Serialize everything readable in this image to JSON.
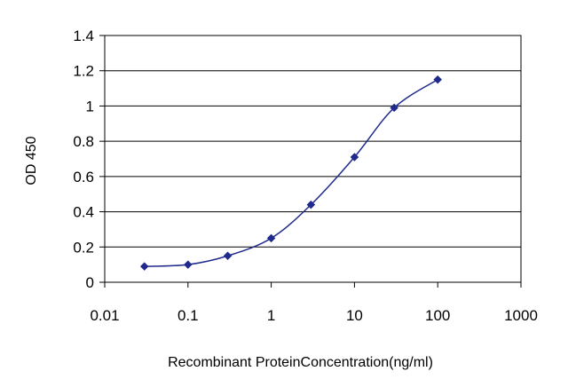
{
  "chart_data": {
    "type": "line",
    "title": "",
    "xlabel": "Recombinant ProteinConcentration(ng/ml)",
    "ylabel": "OD 450",
    "x_scale": "log",
    "xlim": [
      0.01,
      1000
    ],
    "ylim": [
      0,
      1.4
    ],
    "x_ticks": [
      0.01,
      0.1,
      1,
      10,
      100,
      1000
    ],
    "x_tick_labels": [
      "0.01",
      "0.1",
      "1",
      "10",
      "100",
      "1000"
    ],
    "y_ticks": [
      0,
      0.2,
      0.4,
      0.6,
      0.8,
      1,
      1.2,
      1.4
    ],
    "y_tick_labels": [
      "0",
      "0.2",
      "0.4",
      "0.6",
      "0.8",
      "1",
      "1.2",
      "1.4"
    ],
    "grid": "horizontal",
    "series": [
      {
        "x": [
          0.03,
          0.1,
          0.3,
          1,
          3,
          10,
          30,
          100
        ],
        "y": [
          0.09,
          0.1,
          0.15,
          0.25,
          0.44,
          0.71,
          0.99,
          1.15
        ],
        "color": "#1f2a8c"
      }
    ]
  }
}
